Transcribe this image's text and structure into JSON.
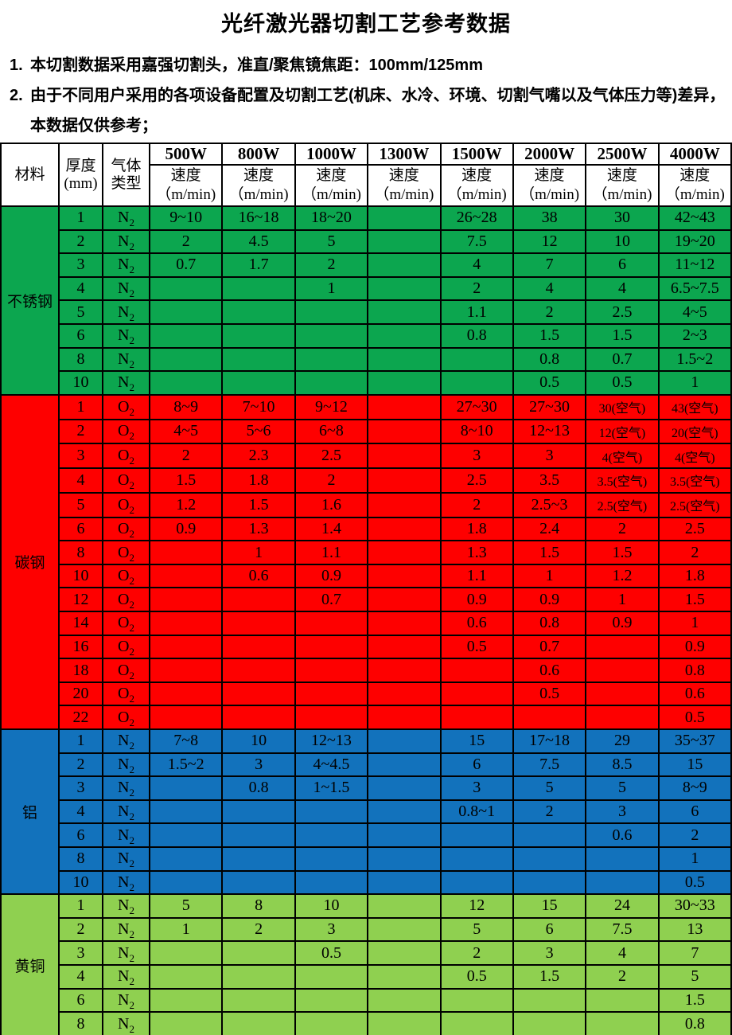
{
  "title": "光纤激光器切割工艺参考数据",
  "notes": [
    {
      "num": "1.",
      "text": "本切割数据采用嘉强切割头，准直/聚焦镜焦距：100mm/125mm"
    },
    {
      "num": "2.",
      "text": "由于不同用户采用的各项设备配置及切割工艺(机床、水冷、环境、切割气嘴以及气体压力等)差异，本数据仅供参考；"
    }
  ],
  "table": {
    "header": {
      "material": "材料",
      "thickness": [
        "厚度",
        "(mm)"
      ],
      "gas": [
        "气体",
        "类型"
      ],
      "powers": [
        "500W",
        "800W",
        "1000W",
        "1300W",
        "1500W",
        "2000W",
        "2500W",
        "4000W"
      ],
      "speed_label": "速度",
      "speed_unit": "（m/min)"
    },
    "columns_meaning": "speeds array order follows powers array",
    "sections": [
      {
        "material": "不锈钢",
        "gas": "N",
        "gas_sub": "2",
        "color": "#0CA64F",
        "rows": [
          {
            "thickness": "1",
            "speeds": [
              "9~10",
              "16~18",
              "18~20",
              "",
              "26~28",
              "38",
              "30",
              "42~43"
            ]
          },
          {
            "thickness": "2",
            "speeds": [
              "2",
              "4.5",
              "5",
              "",
              "7.5",
              "12",
              "10",
              "19~20"
            ]
          },
          {
            "thickness": "3",
            "speeds": [
              "0.7",
              "1.7",
              "2",
              "",
              "4",
              "7",
              "6",
              "11~12"
            ]
          },
          {
            "thickness": "4",
            "speeds": [
              "",
              "",
              "1",
              "",
              "2",
              "4",
              "4",
              "6.5~7.5"
            ]
          },
          {
            "thickness": "5",
            "speeds": [
              "",
              "",
              "",
              "",
              "1.1",
              "2",
              "2.5",
              "4~5"
            ]
          },
          {
            "thickness": "6",
            "speeds": [
              "",
              "",
              "",
              "",
              "0.8",
              "1.5",
              "1.5",
              "2~3"
            ]
          },
          {
            "thickness": "8",
            "speeds": [
              "",
              "",
              "",
              "",
              "",
              "0.8",
              "0.7",
              "1.5~2"
            ]
          },
          {
            "thickness": "10",
            "speeds": [
              "",
              "",
              "",
              "",
              "",
              "0.5",
              "0.5",
              "1"
            ]
          }
        ]
      },
      {
        "material": "碳钢",
        "gas": "O",
        "gas_sub": "2",
        "color": "#FE0000",
        "rows": [
          {
            "thickness": "1",
            "speeds": [
              "8~9",
              "7~10",
              "9~12",
              "",
              "27~30",
              "27~30",
              "30(空气)",
              "43(空气)"
            ]
          },
          {
            "thickness": "2",
            "speeds": [
              "4~5",
              "5~6",
              "6~8",
              "",
              "8~10",
              "12~13",
              "12(空气)",
              "20(空气)"
            ]
          },
          {
            "thickness": "3",
            "speeds": [
              "2",
              "2.3",
              "2.5",
              "",
              "3",
              "3",
              "4(空气)",
              "4(空气)"
            ]
          },
          {
            "thickness": "4",
            "speeds": [
              "1.5",
              "1.8",
              "2",
              "",
              "2.5",
              "3.5",
              "3.5(空气)",
              "3.5(空气)"
            ]
          },
          {
            "thickness": "5",
            "speeds": [
              "1.2",
              "1.5",
              "1.6",
              "",
              "2",
              "2.5~3",
              "2.5(空气)",
              "2.5(空气)"
            ]
          },
          {
            "thickness": "6",
            "speeds": [
              "0.9",
              "1.3",
              "1.4",
              "",
              "1.8",
              "2.4",
              "2",
              "2.5"
            ]
          },
          {
            "thickness": "8",
            "speeds": [
              "",
              "1",
              "1.1",
              "",
              "1.3",
              "1.5",
              "1.5",
              "2"
            ]
          },
          {
            "thickness": "10",
            "speeds": [
              "",
              "0.6",
              "0.9",
              "",
              "1.1",
              "1",
              "1.2",
              "1.8"
            ]
          },
          {
            "thickness": "12",
            "speeds": [
              "",
              "",
              "0.7",
              "",
              "0.9",
              "0.9",
              "1",
              "1.5"
            ]
          },
          {
            "thickness": "14",
            "speeds": [
              "",
              "",
              "",
              "",
              "0.6",
              "0.8",
              "0.9",
              "1"
            ]
          },
          {
            "thickness": "16",
            "speeds": [
              "",
              "",
              "",
              "",
              "0.5",
              "0.7",
              "",
              "0.9"
            ]
          },
          {
            "thickness": "18",
            "speeds": [
              "",
              "",
              "",
              "",
              "",
              "0.6",
              "",
              "0.8"
            ]
          },
          {
            "thickness": "20",
            "speeds": [
              "",
              "",
              "",
              "",
              "",
              "0.5",
              "",
              "0.6"
            ]
          },
          {
            "thickness": "22",
            "speeds": [
              "",
              "",
              "",
              "",
              "",
              "",
              "",
              "0.5"
            ]
          }
        ]
      },
      {
        "material": "铝",
        "gas": "N",
        "gas_sub": "2",
        "color": "#1272BC",
        "rows": [
          {
            "thickness": "1",
            "speeds": [
              "7~8",
              "10",
              "12~13",
              "",
              "15",
              "17~18",
              "29",
              "35~37"
            ]
          },
          {
            "thickness": "2",
            "speeds": [
              "1.5~2",
              "3",
              "4~4.5",
              "",
              "6",
              "7.5",
              "8.5",
              "15"
            ]
          },
          {
            "thickness": "3",
            "speeds": [
              "",
              "0.8",
              "1~1.5",
              "",
              "3",
              "5",
              "5",
              "8~9"
            ]
          },
          {
            "thickness": "4",
            "speeds": [
              "",
              "",
              "",
              "",
              "0.8~1",
              "2",
              "3",
              "6"
            ]
          },
          {
            "thickness": "6",
            "speeds": [
              "",
              "",
              "",
              "",
              "",
              "",
              "0.6",
              "2"
            ]
          },
          {
            "thickness": "8",
            "speeds": [
              "",
              "",
              "",
              "",
              "",
              "",
              "",
              "1"
            ]
          },
          {
            "thickness": "10",
            "speeds": [
              "",
              "",
              "",
              "",
              "",
              "",
              "",
              "0.5"
            ]
          }
        ]
      },
      {
        "material": "黄铜",
        "gas": "N",
        "gas_sub": "2",
        "color": "#8FD050",
        "rows": [
          {
            "thickness": "1",
            "speeds": [
              "5",
              "8",
              "10",
              "",
              "12",
              "15",
              "24",
              "30~33"
            ]
          },
          {
            "thickness": "2",
            "speeds": [
              "1",
              "2",
              "3",
              "",
              "5",
              "6",
              "7.5",
              "13"
            ]
          },
          {
            "thickness": "3",
            "speeds": [
              "",
              "",
              "0.5",
              "",
              "2",
              "3",
              "4",
              "7"
            ]
          },
          {
            "thickness": "4",
            "speeds": [
              "",
              "",
              "",
              "",
              "0.5",
              "1.5",
              "2",
              "5"
            ]
          },
          {
            "thickness": "6",
            "speeds": [
              "",
              "",
              "",
              "",
              "",
              "",
              "",
              "1.5"
            ]
          },
          {
            "thickness": "8",
            "speeds": [
              "",
              "",
              "",
              "",
              "",
              "",
              "",
              "0.8"
            ]
          }
        ]
      }
    ]
  }
}
